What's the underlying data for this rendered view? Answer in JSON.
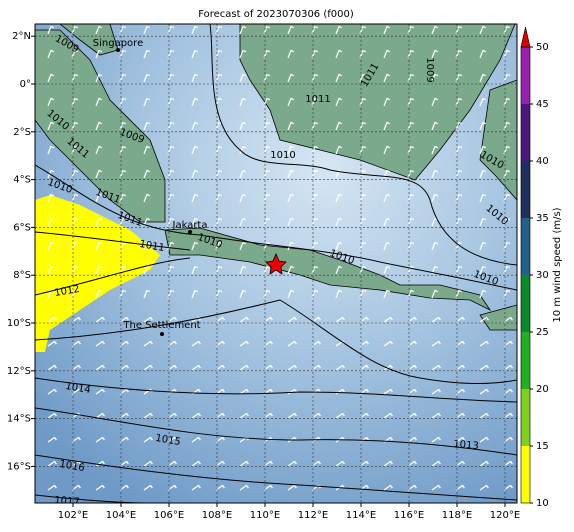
{
  "title": "Forecast of 2023070306 (f000)",
  "map": {
    "lon_ticks": [
      {
        "value": 102,
        "label": "102°E"
      },
      {
        "value": 104,
        "label": "104°E"
      },
      {
        "value": 106,
        "label": "106°E"
      },
      {
        "value": 108,
        "label": "108°E"
      },
      {
        "value": 110,
        "label": "110°E"
      },
      {
        "value": 112,
        "label": "112°E"
      },
      {
        "value": 114,
        "label": "114°E"
      },
      {
        "value": 116,
        "label": "116°E"
      },
      {
        "value": 118,
        "label": "118°E"
      },
      {
        "value": 120,
        "label": "120°E"
      }
    ],
    "lat_ticks": [
      {
        "value": 2,
        "label": "2°N"
      },
      {
        "value": 0,
        "label": "0°"
      },
      {
        "value": -2,
        "label": "2°S"
      },
      {
        "value": -4,
        "label": "4°S"
      },
      {
        "value": -6,
        "label": "6°S"
      },
      {
        "value": -8,
        "label": "8°S"
      },
      {
        "value": -10,
        "label": "10°S"
      },
      {
        "value": -12,
        "label": "12°S"
      },
      {
        "value": -14,
        "label": "14°S"
      },
      {
        "value": -16,
        "label": "16°S"
      }
    ],
    "places": [
      "Singapore",
      "Jakarta",
      "The Settlement"
    ],
    "contour_labels": [
      1009,
      1010,
      1011,
      1009,
      1010,
      1011,
      1011,
      1011,
      1012,
      1010,
      1010,
      1011,
      1011,
      1009,
      1010,
      1010,
      1010,
      1010,
      1014,
      1015,
      1016,
      1017,
      1013
    ]
  },
  "colorbar": {
    "label": "10 m wind speed (m/s)",
    "ticks": [
      10,
      15,
      20,
      25,
      30,
      35,
      40,
      45,
      50
    ],
    "colors": [
      "#ffff00",
      "#7fd11b",
      "#20b020",
      "#0b8a2a",
      "#21608a",
      "#1c2f5e",
      "#4a1a7a",
      "#9a22b0"
    ],
    "extend_color": "#dd0000"
  }
}
